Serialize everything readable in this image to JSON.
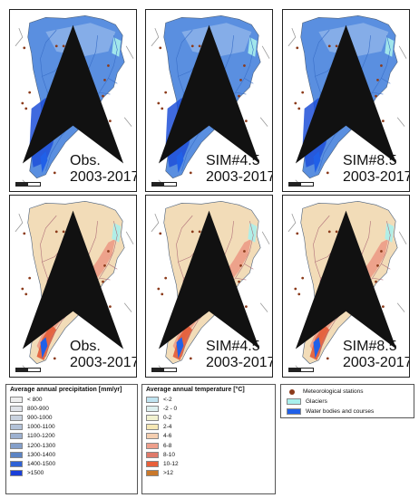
{
  "panels": [
    {
      "id": "precip-obs",
      "line1": "Obs.",
      "line2": "2003-2017"
    },
    {
      "id": "precip-sim45",
      "line1": "SIM#4.5",
      "line2": "2003-2017"
    },
    {
      "id": "precip-sim85",
      "line1": "SIM#8.5",
      "line2": "2003-2017"
    },
    {
      "id": "temp-obs",
      "line1": "Obs.",
      "line2": "2003-2017"
    },
    {
      "id": "temp-sim45",
      "line1": "SIM#4.5",
      "line2": "2003-2017"
    },
    {
      "id": "temp-sim85",
      "line1": "SIM#8.5",
      "line2": "2003-2017"
    }
  ],
  "precip_legend": {
    "title": "Average annual precipitation [mm/yr]",
    "items": [
      {
        "label": "< 800",
        "color": "#eeeeee"
      },
      {
        "label": "800-900",
        "color": "#dfe2e8"
      },
      {
        "label": "900-1000",
        "color": "#c9d2df"
      },
      {
        "label": "1000-1100",
        "color": "#b3c2d8"
      },
      {
        "label": "1100-1200",
        "color": "#9db1d0"
      },
      {
        "label": "1200-1300",
        "color": "#849fca"
      },
      {
        "label": "1300-1400",
        "color": "#5c84c4"
      },
      {
        "label": "1400-1500",
        "color": "#2f62d6"
      },
      {
        "label": ">1500",
        "color": "#1a3fd8"
      }
    ]
  },
  "temp_legend": {
    "title": "Average annual temperature [°C]",
    "items": [
      {
        "label": "<-2",
        "color": "#bfe3f0"
      },
      {
        "label": "-2 - 0",
        "color": "#ddf0ef"
      },
      {
        "label": "0-2",
        "color": "#f2f2d0"
      },
      {
        "label": "2-4",
        "color": "#f5e7b4"
      },
      {
        "label": "4-6",
        "color": "#f4ceb0"
      },
      {
        "label": "6-8",
        "color": "#ee9f8c"
      },
      {
        "label": "8-10",
        "color": "#e07a6a"
      },
      {
        "label": "10-12",
        "color": "#e8603a"
      },
      {
        "label": ">12",
        "color": "#c9782a"
      }
    ]
  },
  "symbols_legend": {
    "items": [
      {
        "label": "Meteorological stations",
        "kind": "dot",
        "color": "#8b3a1a"
      },
      {
        "label": "Glaciers",
        "kind": "box",
        "color": "#a8f0ec"
      },
      {
        "label": "Water bodies and courses",
        "kind": "box",
        "color": "#2060e8"
      }
    ]
  },
  "colors": {
    "precip_base": "#5a8fe0",
    "precip_deep": "#1f50d8",
    "precip_light": "#a9c6ee",
    "temp_base": "#f2dcb8",
    "temp_mid": "#ec9b86",
    "temp_hot": "#e4603c",
    "glacier": "#a8f0ec",
    "water": "#2060e8",
    "station": "#8b3a1a"
  }
}
